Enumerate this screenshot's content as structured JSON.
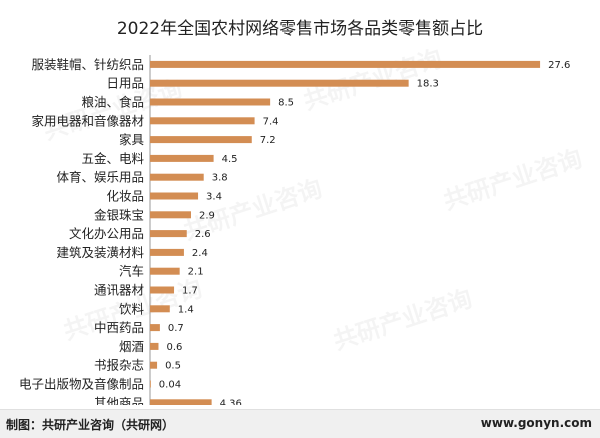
{
  "title": "2022年全国农村网络零售市场各品类零售额占比",
  "source_label": "制图：共研产业咨询（共研网）",
  "source_url": "www.gonyn.com",
  "watermark": "共研产业咨询",
  "colors": {
    "bar": "#D38D53",
    "axis": "#9a9a9a",
    "text": "#222222"
  },
  "chart_data": {
    "type": "bar",
    "orientation": "horizontal",
    "title": "2022年全国农村网络零售市场各品类零售额占比",
    "xlabel": "",
    "ylabel": "",
    "xlim": [
      0,
      30
    ],
    "xticks": [
      0,
      5,
      10,
      15,
      20,
      25,
      30
    ],
    "grid": false,
    "categories": [
      "服装鞋帽、针纺织品",
      "日用品",
      "粮油、食品",
      "家用电器和音像器材",
      "家具",
      "五金、电料",
      "体育、娱乐用品",
      "化妆品",
      "金银珠宝",
      "文化办公用品",
      "建筑及装潢材料",
      "汽车",
      "通讯器材",
      "饮料",
      "中西药品",
      "烟酒",
      "书报杂志",
      "电子出版物及音像制品",
      "其他商品"
    ],
    "values": [
      27.6,
      18.3,
      8.5,
      7.4,
      7.2,
      4.5,
      3.8,
      3.4,
      2.9,
      2.6,
      2.4,
      2.1,
      1.7,
      1.4,
      0.7,
      0.6,
      0.5,
      0.04,
      4.36
    ],
    "value_labels": [
      "27.6",
      "18.3",
      "8.5",
      "7.4",
      "7.2",
      "4.5",
      "3.8",
      "3.4",
      "2.9",
      "2.6",
      "2.4",
      "2.1",
      "1.7",
      "1.4",
      "0.7",
      "0.6",
      "0.5",
      "0.04",
      "4.36"
    ]
  }
}
